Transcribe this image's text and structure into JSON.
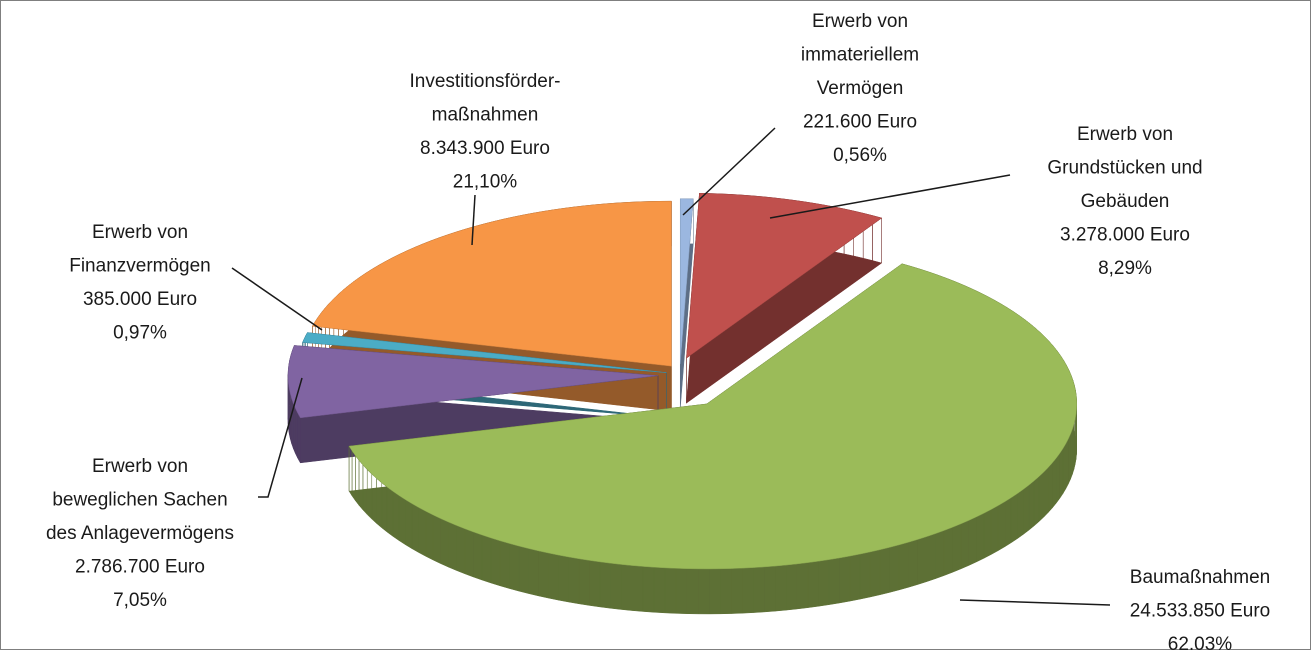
{
  "chart_data": {
    "type": "pie",
    "categories": [
      [
        "Erwerb von",
        "immateriellem",
        "Vermögen"
      ],
      [
        "Erwerb von",
        "Grundstücken und",
        "Gebäuden"
      ],
      [
        "Baumaßnahmen"
      ],
      [
        "Erwerb von",
        "beweglichen Sachen",
        "des Anlagevermögens"
      ],
      [
        "Erwerb von",
        "Finanzvermögen"
      ],
      [
        "Investitionsförder-",
        "maßnahmen"
      ]
    ],
    "values": [
      221600,
      3278000,
      24533850,
      2786700,
      385000,
      8343900
    ],
    "value_labels": [
      "221.600 Euro",
      "3.278.000 Euro",
      "24.533.850 Euro",
      "2.786.700 Euro",
      "385.000 Euro",
      "8.343.900 Euro"
    ],
    "percentages": [
      0.56,
      8.29,
      62.03,
      7.05,
      0.97,
      21.1
    ],
    "percentage_labels": [
      "0,56%",
      "8,29%",
      "62,03%",
      "7,05%",
      "0,97%",
      "21,10%"
    ],
    "colors": [
      "#9bb7e0",
      "#c0504d",
      "#9bbb59",
      "#8064a2",
      "#4bacc6",
      "#f79646"
    ]
  }
}
